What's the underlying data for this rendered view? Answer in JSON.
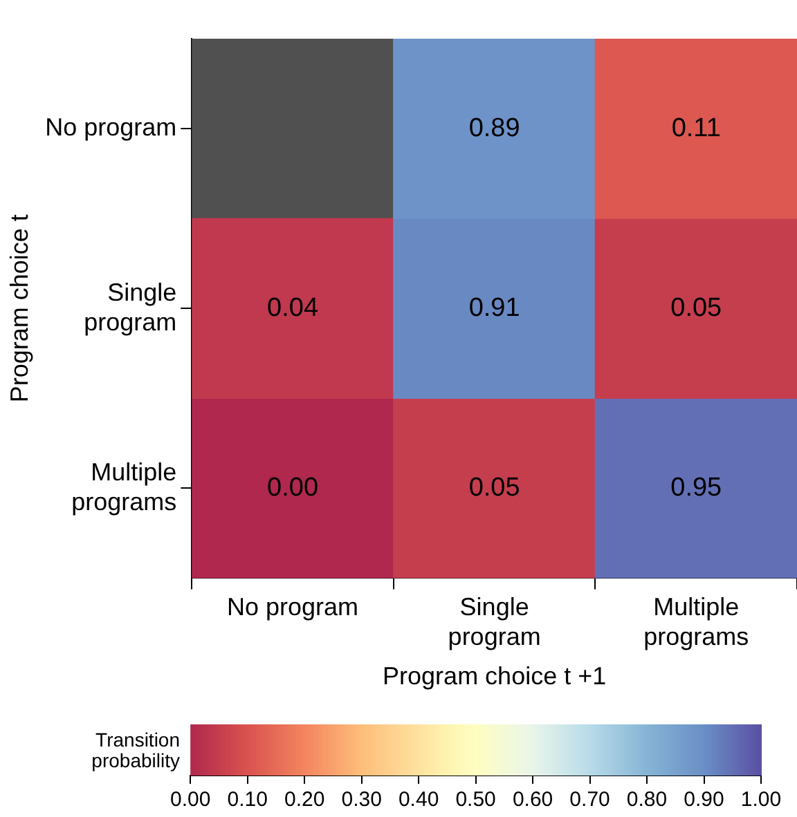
{
  "chart_data": {
    "type": "heatmap",
    "xlabel": "Program choice t +1",
    "ylabel": "Program choice t",
    "clabel": "Transition probability",
    "categories": [
      "No program",
      "Single\nprogram",
      "Multiple\nprograms"
    ],
    "y_categories": [
      "No program",
      "Single\nprogram",
      "Multiple\nprograms"
    ],
    "cells": [
      [
        null,
        0.89,
        0.11
      ],
      [
        0.04,
        0.91,
        0.05
      ],
      [
        0.0,
        0.05,
        0.95
      ]
    ],
    "cell_labels": [
      [
        null,
        "0.89",
        "0.11"
      ],
      [
        "0.04",
        "0.91",
        "0.05"
      ],
      [
        "0.00",
        "0.05",
        "0.95"
      ]
    ],
    "clim": [
      0,
      1
    ],
    "cticks": [
      {
        "value": 0,
        "label": "0.00"
      },
      {
        "value": 0.1,
        "label": "0.10"
      },
      {
        "value": 0.2,
        "label": "0.20"
      },
      {
        "value": 0.3,
        "label": "0.30"
      },
      {
        "value": 0.4,
        "label": "0.40"
      },
      {
        "value": 0.5,
        "label": "0.50"
      },
      {
        "value": 0.6,
        "label": "0.60"
      },
      {
        "value": 0.7,
        "label": "0.70"
      },
      {
        "value": 0.8,
        "label": "0.80"
      },
      {
        "value": 0.9,
        "label": "0.90"
      },
      {
        "value": 1,
        "label": "1.00"
      }
    ]
  }
}
